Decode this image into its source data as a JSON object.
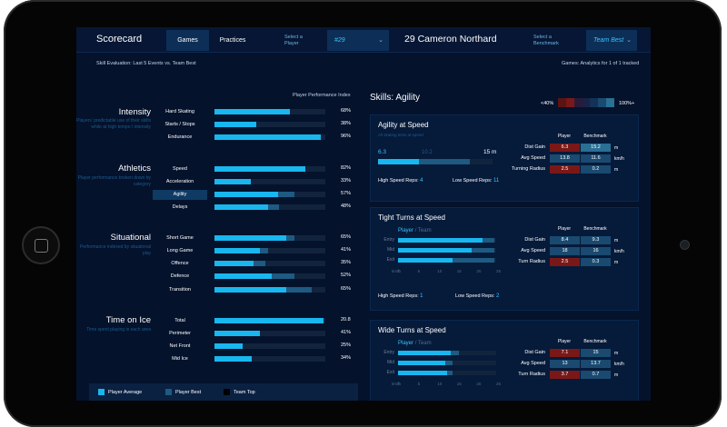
{
  "header": {
    "title": "Scorecard",
    "tabs": [
      "Games",
      "Practices"
    ],
    "select_player_label": "Select a Player",
    "player_number": "#29",
    "player_name": "29 Cameron Northard",
    "select_benchmark_label": "Select a Benchmark",
    "benchmark_value": "Team Best"
  },
  "subheader": {
    "left": "Skill Evaluation: Last 5 Events vs. Team Best",
    "right": "Games: Analytics for 1 of 1 tracked"
  },
  "left": {
    "ppi_label": "Player Performance Index",
    "categories": [
      {
        "title": "Intensity",
        "desc": "Players' predictable use of their skills while at high tempo / intensity",
        "metrics": [
          {
            "name": "Hard Skating",
            "pct": "68%",
            "player": 0.68,
            "team": 0.68
          },
          {
            "name": "Starts / Stops",
            "pct": "38%",
            "player": 0.38,
            "team": 0.38
          },
          {
            "name": "Endurance",
            "pct": "96%",
            "player": 0.96,
            "team": 0.96
          }
        ]
      },
      {
        "title": "Athletics",
        "desc": "Player performance broken down by category",
        "metrics": [
          {
            "name": "Speed",
            "pct": "82%",
            "player": 0.82,
            "team": 0.82
          },
          {
            "name": "Acceleration",
            "pct": "33%",
            "player": 0.33,
            "team": 0.33
          },
          {
            "name": "Agility",
            "pct": "57%",
            "player": 0.57,
            "team": 0.72,
            "selected": true
          },
          {
            "name": "Delays",
            "pct": "48%",
            "player": 0.48,
            "team": 0.58
          }
        ]
      },
      {
        "title": "Situational",
        "desc": "Performance indexed by situational play",
        "metrics": [
          {
            "name": "Short Game",
            "pct": "65%",
            "player": 0.65,
            "team": 0.72
          },
          {
            "name": "Long Game",
            "pct": "41%",
            "player": 0.41,
            "team": 0.48
          },
          {
            "name": "Offence",
            "pct": "35%",
            "player": 0.35,
            "team": 0.46
          },
          {
            "name": "Defence",
            "pct": "52%",
            "player": 0.52,
            "team": 0.72
          },
          {
            "name": "Transition",
            "pct": "65%",
            "player": 0.65,
            "team": 0.88
          }
        ]
      },
      {
        "title": "Time on Ice",
        "desc": "Time spent playing in each area",
        "metrics": [
          {
            "name": "Total",
            "pct": "20.8",
            "player": 0.98,
            "team": 0.98
          },
          {
            "name": "Perimeter",
            "pct": "41%",
            "player": 0.41,
            "team": 0.41
          },
          {
            "name": "Net Front",
            "pct": "25%",
            "player": 0.25,
            "team": 0.25
          },
          {
            "name": "Mid Ice",
            "pct": "34%",
            "player": 0.34,
            "team": 0.34
          }
        ]
      }
    ],
    "legend": [
      "Player Average",
      "Player Best",
      "Team Top"
    ]
  },
  "right": {
    "title": "Skills: Agility",
    "scale_low": "<40%",
    "scale_high": "100%+",
    "scale_colors": [
      "#5a1414",
      "#7a1818",
      "#2a1a3a",
      "#1a2245",
      "#143257",
      "#1a4a70",
      "#2a6f94"
    ],
    "cards": [
      {
        "title": "Agility at Speed",
        "sub": "All skating tests at speed",
        "speed_low": "6.3",
        "speed_mid": "10.2",
        "speed_high": "15",
        "speed_unit": "m",
        "speed_player": 0.36,
        "speed_team": 0.8,
        "high_label": "High Speed Reps:",
        "high_val": "4",
        "low_label": "Low Speed Reps:",
        "low_val": "11",
        "table": {
          "headers": [
            "Player",
            "Benchmark"
          ],
          "rows": [
            {
              "label": "Dist Gain",
              "player": "6.3",
              "bench": "15.2",
              "unit": "m",
              "pc": "#7a1818",
              "bc": "#2a6f94"
            },
            {
              "label": "Avg Speed",
              "player": "13.8",
              "bench": "11.6",
              "unit": "km/h",
              "pc": "#1a4a70",
              "bc": "#1a4a70"
            },
            {
              "label": "Turning Radius",
              "player": "2.5",
              "bench": "0.2",
              "unit": "m",
              "pc": "#7a1818",
              "bc": "#1a4a70"
            }
          ]
        }
      },
      {
        "title": "Tight Turns at Speed",
        "legend": "Player",
        "legend_team": "/ Team",
        "bars": [
          {
            "label": "Entry",
            "player": 0.86,
            "team": 0.98
          },
          {
            "label": "Mid",
            "player": 0.75,
            "team": 0.98
          },
          {
            "label": "Exit",
            "player": 0.56,
            "team": 0.98
          }
        ],
        "axis_label": "km/h",
        "ticks": [
          "0",
          "5",
          "10",
          "15",
          "20",
          "25"
        ],
        "high_label": "High Speed Reps:",
        "high_val": "1",
        "low_label": "Low Speed Reps:",
        "low_val": "2",
        "table": {
          "headers": [
            "Player",
            "Benchmark"
          ],
          "rows": [
            {
              "label": "Dist Gain",
              "player": "8.4",
              "bench": "9.3",
              "unit": "m",
              "pc": "#1a4a70",
              "bc": "#1a4a70"
            },
            {
              "label": "Avg Speed",
              "player": "18",
              "bench": "16",
              "unit": "km/h",
              "pc": "#1a4a70",
              "bc": "#1a4a70"
            },
            {
              "label": "Turn Radius",
              "player": "2.5",
              "bench": "0.3",
              "unit": "m",
              "pc": "#7a1818",
              "bc": "#1a4a70"
            }
          ]
        }
      },
      {
        "title": "Wide Turns at Speed",
        "legend": "Player",
        "legend_team": "/ Team",
        "bars": [
          {
            "label": "Entry",
            "player": 0.54,
            "team": 0.62
          },
          {
            "label": "Mid",
            "player": 0.48,
            "team": 0.56
          },
          {
            "label": "Exit",
            "player": 0.5,
            "team": 0.56
          }
        ],
        "axis_label": "km/h",
        "ticks": [
          "0",
          "5",
          "10",
          "15",
          "20",
          "25"
        ],
        "table": {
          "headers": [
            "Player",
            "Benchmark"
          ],
          "rows": [
            {
              "label": "Dist Gain",
              "player": "7.1",
              "bench": "15",
              "unit": "m",
              "pc": "#7a1818",
              "bc": "#1a4a70"
            },
            {
              "label": "Avg Speed",
              "player": "13",
              "bench": "13.7",
              "unit": "km/h",
              "pc": "#1a4a70",
              "bc": "#1a4a70"
            },
            {
              "label": "Turn Radius",
              "player": "3.7",
              "bench": "0.7",
              "unit": "m",
              "pc": "#7a1818",
              "bc": "#1a4a70"
            }
          ]
        }
      }
    ]
  }
}
